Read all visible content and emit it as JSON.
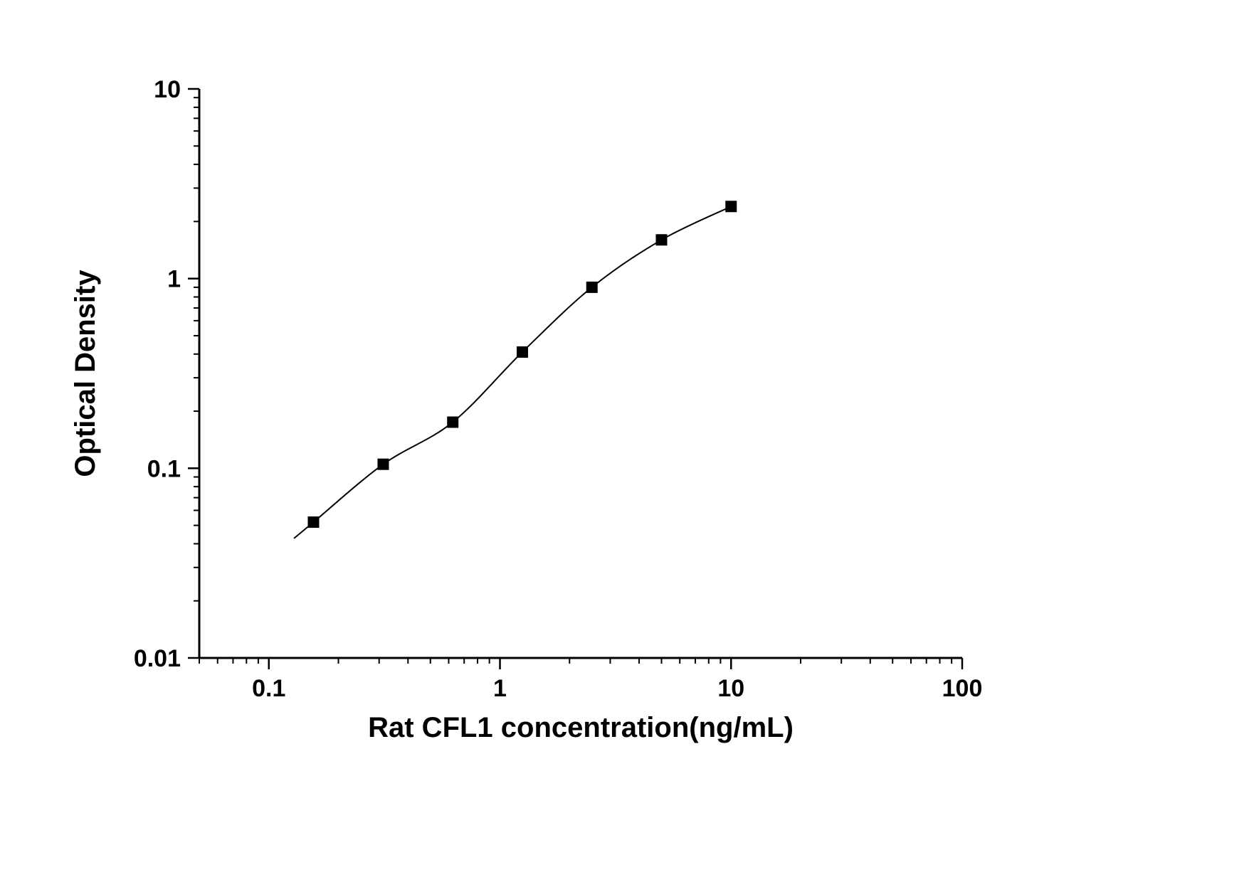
{
  "chart_data": {
    "type": "scatter",
    "title": "",
    "xlabel": "Rat CFL1 concentration(ng/mL)",
    "ylabel": "Optical Density",
    "x_scale": "log",
    "y_scale": "log",
    "xlim": [
      0.05,
      100
    ],
    "ylim": [
      0.01,
      10
    ],
    "x_major_ticks": [
      0.1,
      1,
      10,
      100
    ],
    "y_major_ticks": [
      0.01,
      0.1,
      1,
      10
    ],
    "grid": "off",
    "legend": "none",
    "marker": "filled-square",
    "fit": "smooth sigmoidal (4PL) standard curve through points",
    "points": [
      {
        "x": 0.156,
        "y": 0.052
      },
      {
        "x": 0.3125,
        "y": 0.105
      },
      {
        "x": 0.625,
        "y": 0.175
      },
      {
        "x": 1.25,
        "y": 0.41
      },
      {
        "x": 2.5,
        "y": 0.9
      },
      {
        "x": 5,
        "y": 1.6
      },
      {
        "x": 10,
        "y": 2.4
      }
    ],
    "colors": {
      "line": "#000000",
      "marker": "#000000",
      "background": "#ffffff"
    }
  }
}
